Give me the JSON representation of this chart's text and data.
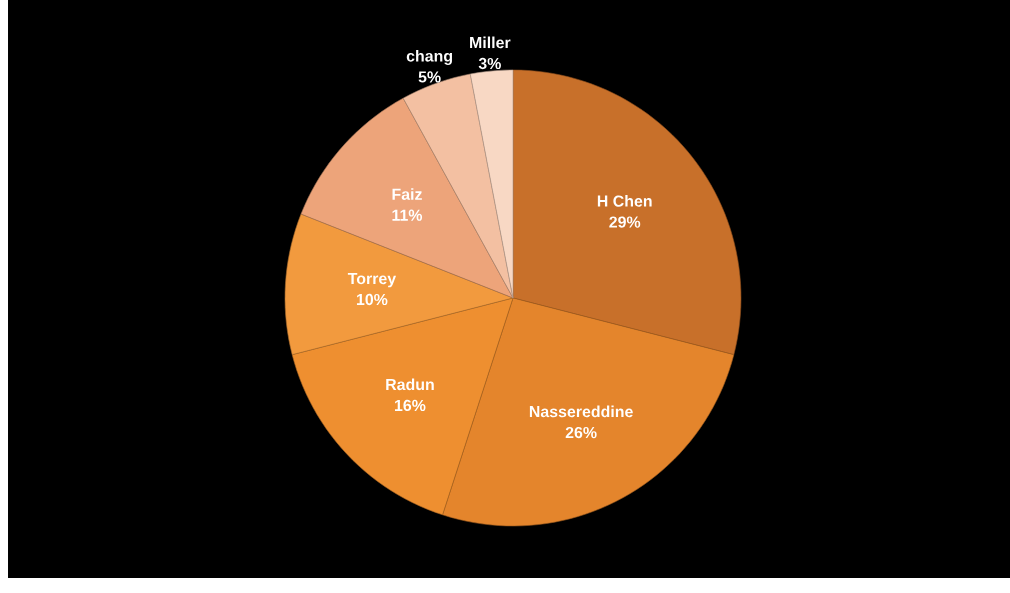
{
  "chart_data": {
    "type": "pie",
    "categories": [
      "H Chen",
      "Nassereddine",
      "Radun",
      "Torrey",
      "Faiz",
      "chang",
      "Miller"
    ],
    "values": [
      29,
      26,
      16,
      10,
      11,
      5,
      3
    ],
    "colors": [
      "#c8702a",
      "#e4852c",
      "#ee8f30",
      "#f29a3e",
      "#eda47a",
      "#f3c0a2",
      "#f8d8c4"
    ],
    "value_labels": [
      "29%",
      "26%",
      "16%",
      "10%",
      "11%",
      "5%",
      "3%"
    ]
  }
}
